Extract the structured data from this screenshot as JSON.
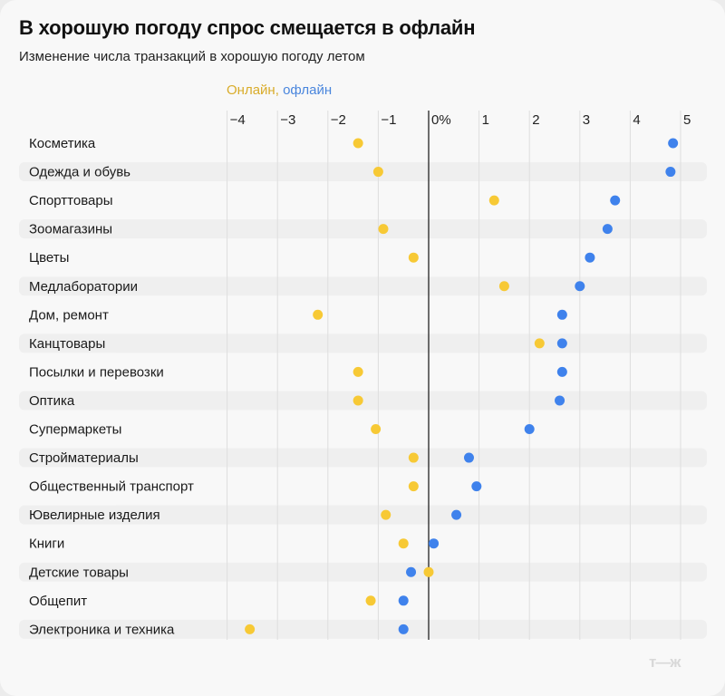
{
  "header": {
    "title": "В хорошую погоду спрос смещается в офлайн",
    "subtitle": "Изменение числа транзакций в хорошую погоду летом"
  },
  "legend": {
    "online_label": "Онлайн,",
    "offline_label": "офлайн"
  },
  "colors": {
    "online": "#f7c935",
    "offline": "#3f82ec",
    "stripe": "#efefef",
    "grid": "#dedede",
    "zero_line": "#333333"
  },
  "logo": "т—ж",
  "chart_data": {
    "type": "scatter",
    "subtype": "dot-plot",
    "title": "В хорошую погоду спрос смещается в офлайн",
    "subtitle": "Изменение числа транзакций в хорошую погоду летом",
    "xlabel": "",
    "ylabel": "",
    "x_unit": "%",
    "xlim": [
      -4,
      5
    ],
    "x_ticks": [
      -4,
      -3,
      -2,
      -1,
      0,
      1,
      2,
      3,
      4,
      5
    ],
    "x_tick_labels": [
      "−4",
      "−3",
      "−2",
      "−1",
      "0%",
      "1",
      "2",
      "3",
      "4",
      "5"
    ],
    "grid": true,
    "legend_position": "top-center",
    "categories": [
      "Косметика",
      "Одежда и обувь",
      "Спорттовары",
      "Зоомагазины",
      "Цветы",
      "Медлаборатории",
      "Дом, ремонт",
      "Канцтовары",
      "Посылки и перевозки",
      "Оптика",
      "Супермаркеты",
      "Стройматериалы",
      "Общественный транспорт",
      "Ювелирные изделия",
      "Книги",
      "Детские товары",
      "Общепит",
      "Электроника и техника"
    ],
    "series": [
      {
        "name": "Онлайн",
        "color": "#f7c935",
        "values": [
          -1.4,
          -1.0,
          1.3,
          -0.9,
          -0.3,
          1.5,
          -2.2,
          2.2,
          -1.4,
          -1.4,
          -1.05,
          -0.3,
          -0.3,
          -0.85,
          -0.5,
          0.0,
          -1.15,
          -3.55
        ]
      },
      {
        "name": "Офлайн",
        "color": "#3f82ec",
        "values": [
          4.85,
          4.8,
          3.7,
          3.55,
          3.2,
          3.0,
          2.65,
          2.65,
          2.65,
          2.6,
          2.0,
          0.8,
          0.95,
          0.55,
          0.1,
          -0.35,
          -0.5,
          -0.5
        ]
      }
    ]
  }
}
